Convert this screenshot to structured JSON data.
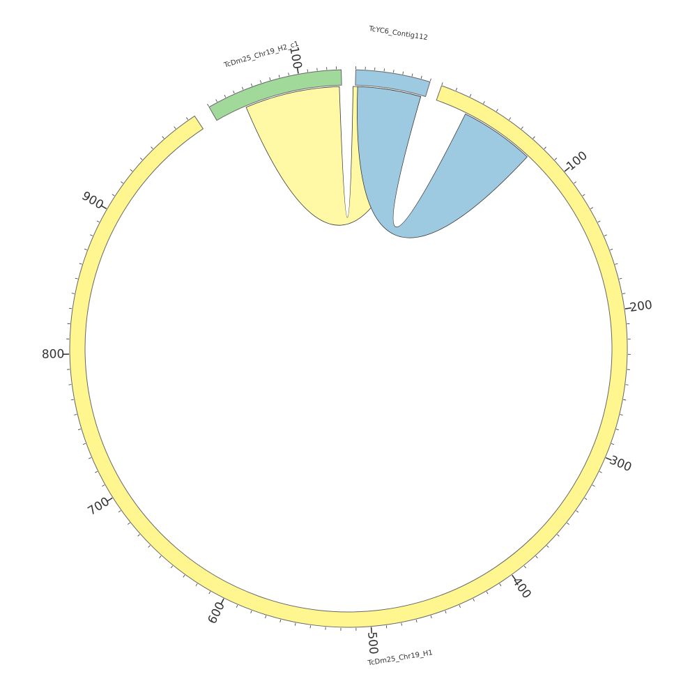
{
  "chart_data": {
    "type": "chord",
    "segments": [
      {
        "name": "TcDm25_Chr19_H2_c1",
        "color": "#a1d99b",
        "major_ticks": [
          "100"
        ]
      },
      {
        "name": "TcYC6_Contig112",
        "color": "#9ecae1",
        "major_ticks": []
      },
      {
        "name": "TcDm25_Chr19_H1",
        "color": "#fff68f",
        "major_ticks": [
          "100",
          "200",
          "300",
          "400",
          "500",
          "600",
          "700",
          "800",
          "900"
        ]
      }
    ],
    "links": [
      {
        "from": "TcDm25_Chr19_H2_c1",
        "to": "TcYC6_Contig112",
        "color": "#fff68f"
      },
      {
        "from": "TcYC6_Contig112",
        "to": "TcDm25_Chr19_H1",
        "color": "#9ecae1"
      }
    ]
  }
}
